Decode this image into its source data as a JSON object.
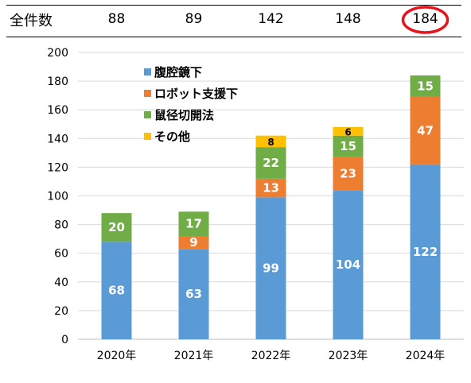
{
  "header": {
    "label": "全件数",
    "totals": [
      "88",
      "89",
      "142",
      "148",
      "184"
    ],
    "highlight_index": 4,
    "highlight_color": "#e8141b"
  },
  "chart_data": {
    "type": "bar",
    "stacked": true,
    "categories": [
      "2020年",
      "2021年",
      "2022年",
      "2023年",
      "2024年"
    ],
    "series": [
      {
        "name": "腹腔鏡下",
        "color": "#5b9bd5",
        "values": [
          68,
          63,
          99,
          104,
          122
        ]
      },
      {
        "name": "ロボット支援下",
        "color": "#ed7d31",
        "values": [
          0,
          9,
          13,
          23,
          47
        ]
      },
      {
        "name": "鼠径切開法",
        "color": "#70ad47",
        "values": [
          20,
          17,
          22,
          15,
          15
        ]
      },
      {
        "name": "その他",
        "color": "#ffc000",
        "values": [
          0,
          0,
          8,
          6,
          0
        ]
      }
    ],
    "ylim": [
      0,
      200
    ],
    "yticks": [
      0,
      20,
      40,
      60,
      80,
      100,
      120,
      140,
      160,
      180,
      200
    ],
    "grid": true,
    "legend": "top-left"
  }
}
